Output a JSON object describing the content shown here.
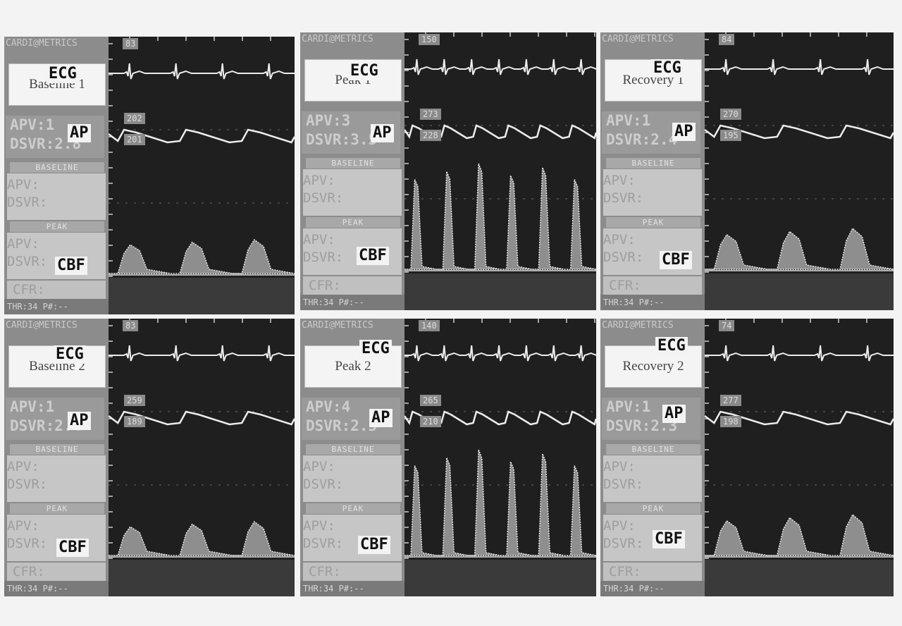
{
  "panels": [
    {
      "label": "Baseline 1",
      "brand": "CARDI@METRICS",
      "rate": "83",
      "ap_top": "202",
      "ap_bot": "201",
      "apv_line1": "APV:1",
      "apv_line2": "DSVR:2.8",
      "hr": "THR:34  P#:--",
      "cbf": "baseline"
    },
    {
      "label": "Peak 1",
      "brand": "CARDI@METRICS",
      "rate": "150",
      "ap_top": "273",
      "ap_bot": "228",
      "apv_line1": "APV:3",
      "apv_line2": "DSVR:3.5",
      "hr": "THR:34  P#:--",
      "cbf": "peak"
    },
    {
      "label": "Recovery 1",
      "brand": "CARDI@METRICS",
      "rate": "84",
      "ap_top": "270",
      "ap_bot": "195",
      "apv_line1": "APV:1",
      "apv_line2": "DSVR:2.4",
      "hr": "THR:34  P#:--",
      "cbf": "recovery"
    },
    {
      "label": "Baseline 2",
      "brand": "CARDI@METRICS",
      "rate": "83",
      "ap_top": "259",
      "ap_bot": "189",
      "apv_line1": "APV:1",
      "apv_line2": "DSVR:2.4",
      "hr": "THR:34  P#:--",
      "cbf": "baseline"
    },
    {
      "label": "Peak 2",
      "brand": "CARDI@METRICS",
      "rate": "140",
      "ap_top": "265",
      "ap_bot": "210",
      "apv_line1": "APV:4",
      "apv_line2": "DSVR:2.5",
      "hr": "THR:34  P#:--",
      "cbf": "peak"
    },
    {
      "label": "Recovery 2",
      "brand": "CARDI@METRICS",
      "rate": "74",
      "ap_top": "277",
      "ap_bot": "198",
      "apv_line1": "APV:1",
      "apv_line2": "DSVR:2.3",
      "hr": "THR:34  P#:--",
      "cbf": "recovery"
    }
  ],
  "side_text": {
    "baseline_header": "BASELINE",
    "peak_header": "PEAK",
    "apv_block": "APV:\nDSVR:",
    "cfr": "CFR:"
  },
  "trace_tags": {
    "ecg": "ECG",
    "ap": "AP",
    "cbf": "CBF"
  },
  "colors": {
    "background": "#f3f3f3",
    "scope": "#1f1f1f",
    "trace": "#ececec",
    "sidebar": "#8c8c8c"
  }
}
